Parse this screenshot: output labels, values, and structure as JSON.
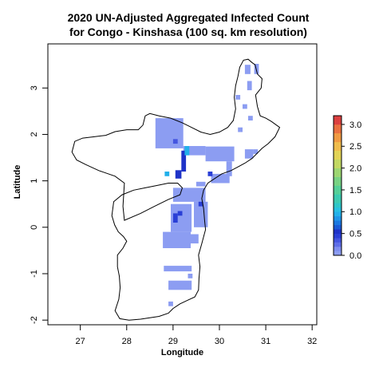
{
  "chart_data": {
    "type": "heatmap",
    "title_line1": "2020 UN-Adjusted Aggregated Infected Count",
    "title_line2": "for Congo - Kinshasa (100 sq. km resolution)",
    "xlabel": "Longitude",
    "ylabel": "Latitude",
    "xlim": [
      26.3,
      32.1
    ],
    "ylim": [
      -2.1,
      3.95
    ],
    "x_ticks": [
      27,
      28,
      29,
      30,
      31,
      32
    ],
    "y_ticks": [
      -2,
      -1,
      0,
      1,
      2,
      3
    ],
    "legend": {
      "ticks": [
        "0.0",
        "0.5",
        "1.0",
        "1.5",
        "2.0",
        "2.5",
        "3.0"
      ],
      "range": [
        0,
        3.2
      ],
      "bands": [
        {
          "from": 0.0,
          "to": 0.1,
          "color": "#8c9df2"
        },
        {
          "from": 0.1,
          "to": 0.2,
          "color": "#7f8ef0"
        },
        {
          "from": 0.2,
          "to": 0.3,
          "color": "#5f6ee8"
        },
        {
          "from": 0.3,
          "to": 0.4,
          "color": "#4455e0"
        },
        {
          "from": 0.4,
          "to": 0.5,
          "color": "#2a3fd6"
        },
        {
          "from": 0.5,
          "to": 0.6,
          "color": "#1f33c8"
        },
        {
          "from": 0.6,
          "to": 0.7,
          "color": "#1a5ad6"
        },
        {
          "from": 0.7,
          "to": 0.8,
          "color": "#1a78e0"
        },
        {
          "from": 0.8,
          "to": 0.9,
          "color": "#1e95e8"
        },
        {
          "from": 0.9,
          "to": 1.0,
          "color": "#22b0ea"
        },
        {
          "from": 1.0,
          "to": 1.1,
          "color": "#27c0e2"
        },
        {
          "from": 1.1,
          "to": 1.2,
          "color": "#2ec6c8"
        },
        {
          "from": 1.2,
          "to": 1.4,
          "color": "#3ccab0"
        },
        {
          "from": 1.4,
          "to": 1.6,
          "color": "#55cf98"
        },
        {
          "from": 1.6,
          "to": 1.8,
          "color": "#78d283"
        },
        {
          "from": 1.8,
          "to": 2.0,
          "color": "#9dd671"
        },
        {
          "from": 2.0,
          "to": 2.2,
          "color": "#c2d862"
        },
        {
          "from": 2.2,
          "to": 2.4,
          "color": "#e2d356"
        },
        {
          "from": 2.4,
          "to": 2.6,
          "color": "#f0bc4c"
        },
        {
          "from": 2.6,
          "to": 2.8,
          "color": "#f09a42"
        },
        {
          "from": 2.8,
          "to": 3.0,
          "color": "#ea7040"
        },
        {
          "from": 3.0,
          "to": 3.2,
          "color": "#dc4040"
        }
      ]
    },
    "colors": {
      "low": "#8c9df2",
      "mid": "#2a3fd6",
      "high": "#1e95e8",
      "outline": "#000000"
    },
    "boundary_outline": [
      [
        30.44,
        3.45
      ],
      [
        30.52,
        3.6
      ],
      [
        30.62,
        3.62
      ],
      [
        30.7,
        3.55
      ],
      [
        30.77,
        3.5
      ],
      [
        30.82,
        3.3
      ],
      [
        30.92,
        3.2
      ],
      [
        30.9,
        3.0
      ],
      [
        30.78,
        2.85
      ],
      [
        30.82,
        2.6
      ],
      [
        30.88,
        2.4
      ],
      [
        31.0,
        2.35
      ],
      [
        31.12,
        2.28
      ],
      [
        31.3,
        2.15
      ],
      [
        31.2,
        1.95
      ],
      [
        31.05,
        1.8
      ],
      [
        30.92,
        1.7
      ],
      [
        30.8,
        1.58
      ],
      [
        30.7,
        1.48
      ],
      [
        30.55,
        1.38
      ],
      [
        30.4,
        1.3
      ],
      [
        30.25,
        1.22
      ],
      [
        30.05,
        1.15
      ],
      [
        29.9,
        1.05
      ],
      [
        29.75,
        0.95
      ],
      [
        29.66,
        0.8
      ],
      [
        29.62,
        0.62
      ],
      [
        29.66,
        0.4
      ],
      [
        29.68,
        0.15
      ],
      [
        29.7,
        -0.05
      ],
      [
        29.62,
        -0.35
      ],
      [
        29.55,
        -0.6
      ],
      [
        29.58,
        -0.85
      ],
      [
        29.56,
        -1.1
      ],
      [
        29.55,
        -1.35
      ],
      [
        29.47,
        -1.5
      ],
      [
        29.3,
        -1.58
      ],
      [
        29.15,
        -1.65
      ],
      [
        29.0,
        -1.75
      ],
      [
        28.9,
        -1.85
      ],
      [
        28.7,
        -1.92
      ],
      [
        28.5,
        -1.95
      ],
      [
        28.3,
        -1.98
      ],
      [
        28.05,
        -2.0
      ],
      [
        27.85,
        -1.97
      ],
      [
        27.75,
        -1.8
      ],
      [
        27.83,
        -1.55
      ],
      [
        27.86,
        -1.3
      ],
      [
        27.84,
        -1.05
      ],
      [
        27.8,
        -0.85
      ],
      [
        27.8,
        -0.6
      ],
      [
        27.92,
        -0.45
      ],
      [
        28.0,
        -0.3
      ],
      [
        27.93,
        -0.2
      ],
      [
        27.82,
        -0.1
      ],
      [
        27.74,
        0.05
      ],
      [
        27.68,
        0.25
      ],
      [
        27.72,
        0.55
      ],
      [
        27.9,
        0.7
      ],
      [
        28.15,
        0.8
      ],
      [
        28.4,
        0.85
      ],
      [
        28.65,
        0.9
      ],
      [
        28.9,
        0.95
      ],
      [
        29.1,
        0.95
      ],
      [
        29.2,
        0.85
      ],
      [
        29.15,
        0.7
      ],
      [
        28.9,
        0.6
      ],
      [
        28.6,
        0.45
      ],
      [
        28.3,
        0.3
      ],
      [
        27.95,
        0.15
      ],
      [
        27.92,
        0.45
      ],
      [
        27.95,
        0.95
      ],
      [
        27.75,
        1.1
      ],
      [
        27.4,
        1.22
      ],
      [
        27.12,
        1.35
      ],
      [
        26.92,
        1.45
      ],
      [
        26.82,
        1.62
      ],
      [
        26.88,
        1.85
      ],
      [
        27.05,
        1.92
      ],
      [
        27.3,
        1.95
      ],
      [
        27.55,
        1.98
      ],
      [
        27.75,
        2.06
      ],
      [
        28.0,
        2.1
      ],
      [
        28.25,
        2.1
      ],
      [
        28.35,
        2.2
      ],
      [
        28.4,
        2.4
      ],
      [
        28.5,
        2.45
      ],
      [
        28.7,
        2.4
      ],
      [
        28.95,
        2.35
      ],
      [
        29.2,
        2.25
      ],
      [
        29.4,
        2.15
      ],
      [
        29.6,
        2.05
      ],
      [
        29.8,
        2.0
      ],
      [
        30.0,
        2.05
      ],
      [
        30.18,
        2.15
      ],
      [
        30.3,
        2.3
      ],
      [
        30.35,
        2.55
      ],
      [
        30.32,
        2.8
      ],
      [
        30.35,
        3.05
      ],
      [
        30.4,
        3.25
      ],
      [
        30.44,
        3.45
      ]
    ],
    "cell_size_deg": 0.09,
    "cells": [
      {
        "x": 28.62,
        "y": 1.7,
        "w": 0.6,
        "h": 0.65,
        "value": 0.05
      },
      {
        "x": 29.22,
        "y": 1.55,
        "w": 0.48,
        "h": 0.2,
        "value": 0.05
      },
      {
        "x": 29.7,
        "y": 1.42,
        "w": 0.62,
        "h": 0.32,
        "value": 0.05
      },
      {
        "x": 30.15,
        "y": 1.1,
        "w": 0.12,
        "h": 0.32,
        "value": 0.05
      },
      {
        "x": 30.55,
        "y": 1.48,
        "w": 0.18,
        "h": 0.2,
        "value": 0.05
      },
      {
        "x": 30.73,
        "y": 1.58,
        "w": 0.1,
        "h": 0.1,
        "value": 0.05
      },
      {
        "x": 29.82,
        "y": 0.95,
        "w": 0.4,
        "h": 0.2,
        "value": 0.05
      },
      {
        "x": 29.5,
        "y": 0.88,
        "w": 0.2,
        "h": 0.1,
        "value": 0.05
      },
      {
        "x": 29.0,
        "y": 0.55,
        "w": 0.7,
        "h": 0.3,
        "value": 0.05
      },
      {
        "x": 29.45,
        "y": 0.0,
        "w": 0.3,
        "h": 0.55,
        "value": 0.05
      },
      {
        "x": 28.95,
        "y": -0.1,
        "w": 0.45,
        "h": 0.6,
        "value": 0.05
      },
      {
        "x": 28.78,
        "y": -0.45,
        "w": 0.6,
        "h": 0.35,
        "value": 0.05
      },
      {
        "x": 29.35,
        "y": -0.35,
        "w": 0.2,
        "h": 0.2,
        "value": 0.05
      },
      {
        "x": 28.8,
        "y": -0.95,
        "w": 0.6,
        "h": 0.12,
        "value": 0.05
      },
      {
        "x": 28.9,
        "y": -1.35,
        "w": 0.5,
        "h": 0.2,
        "value": 0.05
      },
      {
        "x": 29.32,
        "y": -1.1,
        "w": 0.1,
        "h": 0.1,
        "value": 0.05
      },
      {
        "x": 28.9,
        "y": -1.7,
        "w": 0.1,
        "h": 0.1,
        "value": 0.05
      },
      {
        "x": 30.55,
        "y": 3.3,
        "w": 0.12,
        "h": 0.2,
        "value": 0.05
      },
      {
        "x": 30.75,
        "y": 3.3,
        "w": 0.1,
        "h": 0.22,
        "value": 0.05
      },
      {
        "x": 30.6,
        "y": 2.95,
        "w": 0.1,
        "h": 0.2,
        "value": 0.05
      },
      {
        "x": 30.35,
        "y": 2.75,
        "w": 0.1,
        "h": 0.1,
        "value": 0.05
      },
      {
        "x": 30.5,
        "y": 2.55,
        "w": 0.1,
        "h": 0.1,
        "value": 0.05
      },
      {
        "x": 30.62,
        "y": 2.3,
        "w": 0.1,
        "h": 0.1,
        "value": 0.05
      },
      {
        "x": 30.4,
        "y": 2.05,
        "w": 0.1,
        "h": 0.1,
        "value": 0.05
      },
      {
        "x": 29.0,
        "y": 1.8,
        "w": 0.1,
        "h": 0.1,
        "value": 0.35
      },
      {
        "x": 29.18,
        "y": 1.2,
        "w": 0.1,
        "h": 0.45,
        "value": 0.55
      },
      {
        "x": 29.05,
        "y": 1.05,
        "w": 0.13,
        "h": 0.18,
        "value": 0.55
      },
      {
        "x": 29.25,
        "y": 1.55,
        "w": 0.1,
        "h": 0.2,
        "value": 0.9
      },
      {
        "x": 28.82,
        "y": 1.1,
        "w": 0.1,
        "h": 0.1,
        "value": 0.9
      },
      {
        "x": 29.75,
        "y": 1.1,
        "w": 0.1,
        "h": 0.1,
        "value": 0.45
      },
      {
        "x": 29.55,
        "y": 0.45,
        "w": 0.1,
        "h": 0.1,
        "value": 0.45
      },
      {
        "x": 29.0,
        "y": 0.1,
        "w": 0.1,
        "h": 0.2,
        "value": 0.45
      },
      {
        "x": 29.1,
        "y": 0.25,
        "w": 0.1,
        "h": 0.1,
        "value": 0.45
      }
    ]
  }
}
